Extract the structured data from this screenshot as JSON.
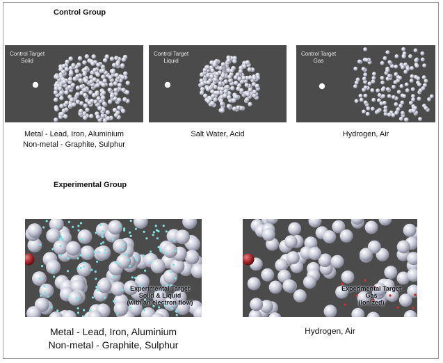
{
  "control_group": {
    "title": "Control Group",
    "panels": [
      {
        "target_label": "Control Target\nSolid",
        "caption_lines": [
          "Metal - Lead, Iron, Aluminium",
          "Non-metal - Graphite, Sulphur"
        ]
      },
      {
        "target_label": "Control Target\nLiquid",
        "caption_lines": [
          "Salt Water, Acid"
        ]
      },
      {
        "target_label": "Control Target\nGas",
        "caption_lines": [
          "Hydrogen, Air"
        ]
      }
    ]
  },
  "experimental_group": {
    "title": "Experimental Group",
    "panels": [
      {
        "target_label": "Experimental Target\nSolid & Liquid\n(with an electron flow)",
        "caption_lines": [
          "Metal - Lead, Iron, Aluminium",
          "Non-metal - Graphite, Sulphur"
        ]
      },
      {
        "target_label": "Experimental Target\nGas\n(Ionized)",
        "caption_lines": [
          "Hydrogen, Air"
        ]
      }
    ]
  },
  "colors": {
    "panel_bg": "#4b4b4b",
    "particle": "#c8cad8",
    "projectile_white": "#ffffff",
    "projectile_red": "#a8262a",
    "electron": "#7fe3e3",
    "ion": "#d03030"
  }
}
